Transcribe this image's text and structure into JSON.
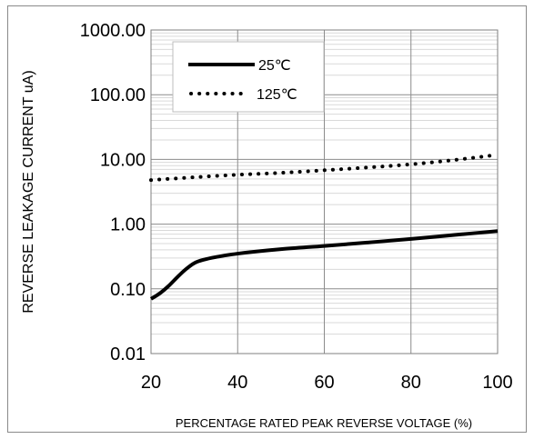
{
  "chart_data": {
    "type": "line",
    "title": "",
    "xlabel": "PERCENTAGE RATED PEAK REVERSE VOLTAGE (%)",
    "ylabel": "REVERSE LEAKAGE CURRENT uA)",
    "x_range": [
      20,
      100
    ],
    "x_ticks": [
      20,
      40,
      60,
      80,
      100
    ],
    "y_scale": "log",
    "y_range": [
      0.01,
      1000
    ],
    "y_ticks": [
      "0.01",
      "0.10",
      "1.00",
      "10.00",
      "100.00",
      "1000.00"
    ],
    "grid": true,
    "legend_position": "top-left",
    "series": [
      {
        "name": "25℃",
        "style": "solid",
        "color": "#000000",
        "x": [
          20,
          22,
          24,
          26,
          28,
          30,
          32,
          35,
          40,
          50,
          60,
          70,
          80,
          90,
          100
        ],
        "y": [
          0.07,
          0.085,
          0.11,
          0.15,
          0.2,
          0.25,
          0.28,
          0.31,
          0.35,
          0.41,
          0.46,
          0.52,
          0.59,
          0.68,
          0.78
        ]
      },
      {
        "name": "125℃",
        "style": "dotted",
        "color": "#000000",
        "x": [
          20,
          30,
          40,
          50,
          60,
          70,
          80,
          90,
          100
        ],
        "y": [
          4.8,
          5.3,
          5.8,
          6.2,
          6.8,
          7.5,
          8.4,
          9.8,
          11.8
        ]
      }
    ]
  }
}
